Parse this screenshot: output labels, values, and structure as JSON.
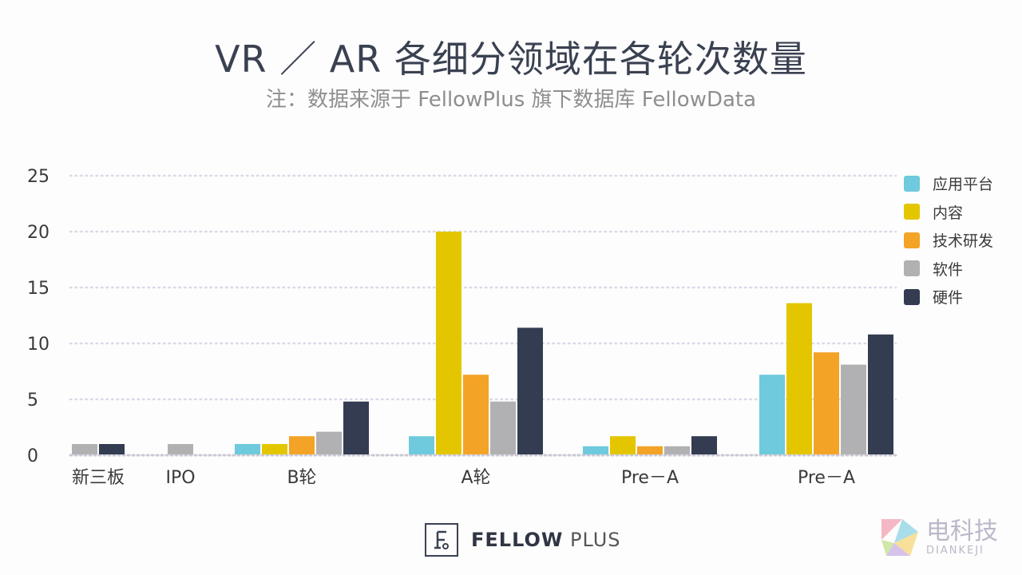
{
  "header": {
    "title": "VR ／ AR 各细分领域在各轮次数量",
    "subtitle": "注：数据来源于 FellowPlus 旗下数据库 FellowData"
  },
  "chart_data": {
    "type": "bar",
    "categories": [
      "新三板",
      "IPO",
      "B轮",
      "A轮",
      "Pre－A",
      "Pre－A"
    ],
    "series": [
      {
        "name": "应用平台",
        "color": "#6ecadc",
        "values": [
          0,
          0,
          1,
          1.7,
          0.8,
          7.2
        ]
      },
      {
        "name": "内容",
        "color": "#e4c600",
        "values": [
          0,
          0,
          1,
          20,
          1.7,
          13.6
        ]
      },
      {
        "name": "技术研发",
        "color": "#f3a325",
        "values": [
          0,
          0,
          1.7,
          7.2,
          0.8,
          9.2
        ]
      },
      {
        "name": "软件",
        "color": "#b1b1b3",
        "values": [
          1,
          1,
          2.1,
          4.8,
          0.8,
          8.1
        ]
      },
      {
        "name": "硬件",
        "color": "#333c51",
        "values": [
          1,
          0,
          4.8,
          11.4,
          1.7,
          10.8
        ]
      }
    ],
    "yticks": [
      0,
      5,
      10,
      15,
      20,
      25
    ],
    "ylim": [
      0,
      25
    ],
    "grid": true,
    "legend": "right"
  },
  "footer": {
    "logo_bold": "FELLOW",
    "logo_light": "PLUS",
    "watermark_cn": "电科技",
    "watermark_en": "DIANKEJI"
  }
}
